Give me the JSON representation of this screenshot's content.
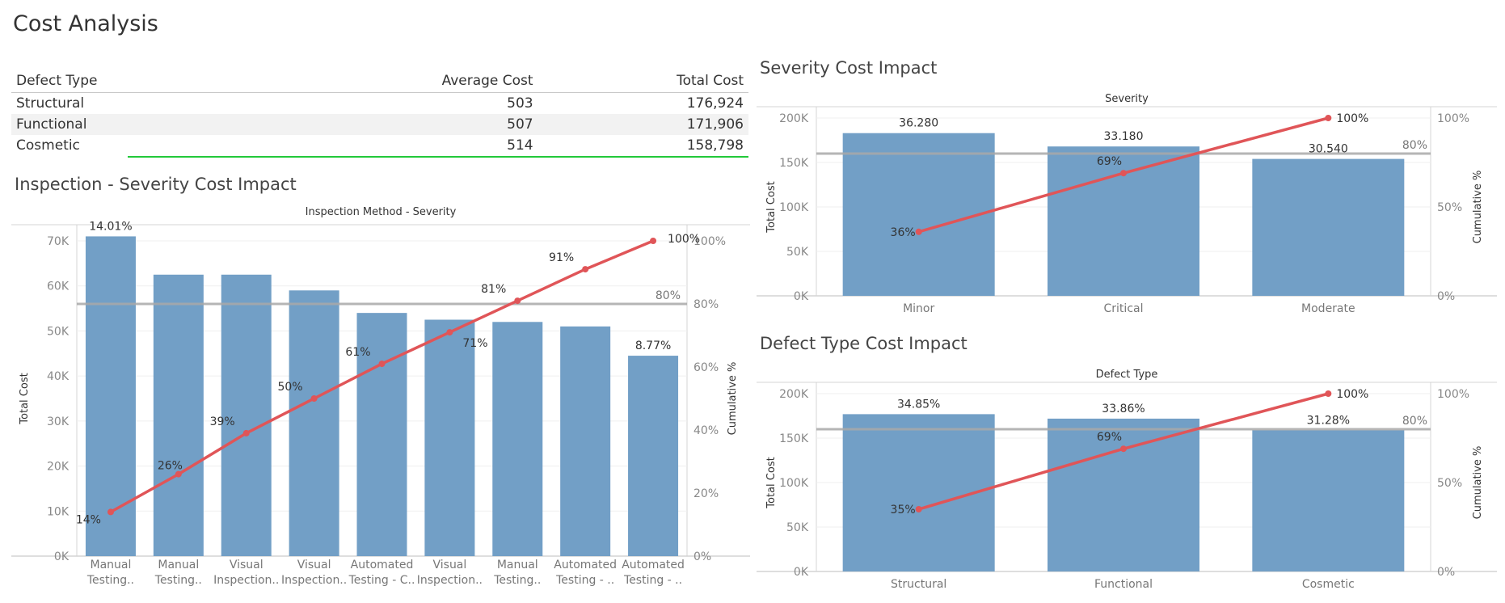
{
  "page_title": "Cost Analysis",
  "table": {
    "headers": [
      "Defect Type",
      "Average Cost",
      "Total Cost"
    ],
    "rows": [
      [
        "Structural",
        "503",
        "176,924"
      ],
      [
        "Functional",
        "507",
        "171,906"
      ],
      [
        "Cosmetic",
        "514",
        "158,798"
      ]
    ]
  },
  "colors": {
    "bar": "#729fc6",
    "line": "#e05558",
    "ref": "#a9a9a9",
    "highlight": "#22c93a"
  },
  "chart_data": [
    {
      "id": "inspection",
      "section_title": "Inspection - Severity Cost Impact",
      "type": "bar",
      "title": "Inspection Method - Severity",
      "xlabel": "",
      "ylabel": "Total Cost",
      "y2label": "Cumulative %",
      "ylim": [
        0,
        70000
      ],
      "yticks": [
        "0K",
        "10K",
        "20K",
        "30K",
        "40K",
        "50K",
        "60K",
        "70K"
      ],
      "y2ticks": [
        "0%",
        "20%",
        "40%",
        "60%",
        "80%",
        "100%"
      ],
      "categories": [
        [
          "Manual",
          "Testing.."
        ],
        [
          "Manual",
          "Testing.."
        ],
        [
          "Visual",
          "Inspection.."
        ],
        [
          "Visual",
          "Inspection.."
        ],
        [
          "Automated",
          "Testing - C.."
        ],
        [
          "Visual",
          "Inspection.."
        ],
        [
          "Manual",
          "Testing.."
        ],
        [
          "Automated",
          "Testing - .."
        ],
        [
          "Automated",
          "Testing - .."
        ]
      ],
      "values": [
        71000,
        62500,
        62500,
        59000,
        54000,
        52500,
        52000,
        51000,
        44500
      ],
      "bar_labels": [
        "14.01%",
        "",
        "",
        "",
        "",
        "",
        "",
        "",
        "8.77%"
      ],
      "cumulative": [
        14,
        26,
        39,
        50,
        61,
        71,
        81,
        91,
        100
      ],
      "cum_labels": [
        "14%",
        "26%",
        "39%",
        "50%",
        "61%",
        "71%",
        "81%",
        "91%",
        "100%"
      ],
      "reference": {
        "value_pct": 80,
        "label": "80%"
      }
    },
    {
      "id": "severity",
      "section_title": "Severity Cost Impact",
      "type": "bar",
      "title": "Severity",
      "xlabel": "",
      "ylabel": "Total Cost",
      "y2label": "Cumulative %",
      "ylim": [
        0,
        200000
      ],
      "yticks": [
        "0K",
        "50K",
        "100K",
        "150K",
        "200K"
      ],
      "y2ticks": [
        "0%",
        "50%",
        "100%"
      ],
      "categories": [
        [
          "Minor"
        ],
        [
          "Critical"
        ],
        [
          "Moderate"
        ]
      ],
      "values": [
        183000,
        168000,
        154000
      ],
      "bar_labels": [
        "36.280",
        "33.180",
        "30.540"
      ],
      "cumulative": [
        36,
        69,
        100
      ],
      "cum_labels": [
        "36%",
        "69%",
        "100%"
      ],
      "reference": {
        "value_pct": 80,
        "label": "80%"
      }
    },
    {
      "id": "defecttype",
      "section_title": "Defect Type Cost Impact",
      "type": "bar",
      "title": "Defect Type",
      "xlabel": "",
      "ylabel": "Total Cost",
      "y2label": "Cumulative %",
      "ylim": [
        0,
        200000
      ],
      "yticks": [
        "0K",
        "50K",
        "100K",
        "150K",
        "200K"
      ],
      "y2ticks": [
        "0%",
        "50%",
        "100%"
      ],
      "categories": [
        [
          "Structural"
        ],
        [
          "Functional"
        ],
        [
          "Cosmetic"
        ]
      ],
      "values": [
        176924,
        171906,
        158798
      ],
      "bar_labels": [
        "34.85%",
        "33.86%",
        "31.28%"
      ],
      "cumulative": [
        35,
        69,
        100
      ],
      "cum_labels": [
        "35%",
        "69%",
        "100%"
      ],
      "reference": {
        "value_pct": 80,
        "label": "80%"
      }
    }
  ]
}
